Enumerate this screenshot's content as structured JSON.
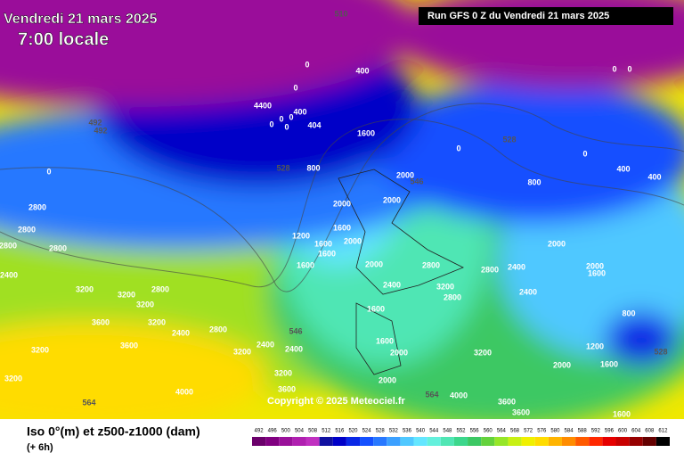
{
  "header": {
    "date": "Vendredi 21 mars 2025",
    "time": "7:00 locale",
    "run": "Run GFS 0 Z du Vendredi 21 mars 2025"
  },
  "copyright": "Copyright © 2025 Meteociel.fr",
  "legend": {
    "title": "Iso 0°(m) et z500-z1000 (dam)",
    "step": "(+ 6h)",
    "scale": [
      492,
      496,
      500,
      504,
      508,
      512,
      516,
      520,
      524,
      528,
      532,
      536,
      540,
      544,
      548,
      552,
      556,
      560,
      564,
      568,
      572,
      576,
      580,
      584,
      588,
      592,
      596,
      600,
      604,
      608,
      612
    ],
    "colors": [
      "#6b006b",
      "#800080",
      "#9a109a",
      "#b020b0",
      "#c030c0",
      "#1010a0",
      "#0000c8",
      "#0a28e6",
      "#1450ff",
      "#2878ff",
      "#3ca0ff",
      "#50c8ff",
      "#64e6ff",
      "#64f0dc",
      "#50e6b4",
      "#3cd78c",
      "#3cc864",
      "#64d23c",
      "#96e628",
      "#c8f014",
      "#f0f000",
      "#ffdc00",
      "#ffb400",
      "#ff8c00",
      "#ff5a00",
      "#ff2800",
      "#e60000",
      "#c80000",
      "#960000",
      "#640000",
      "#000000"
    ]
  },
  "iso0_labels": [
    0,
    400,
    0,
    4400,
    400,
    0,
    0,
    0,
    0,
    404,
    1600,
    800,
    2000,
    2000,
    2000,
    1600,
    1200,
    1600,
    2000,
    1600,
    1600,
    2000,
    2800,
    2400,
    3200,
    2800,
    2800,
    2400,
    2400,
    1600,
    1600,
    2000,
    2000,
    3200,
    4000,
    3600,
    3600,
    2000,
    2000,
    1600,
    800,
    1200,
    1600,
    2000,
    1600,
    400,
    400,
    800,
    0,
    0,
    0,
    0,
    0,
    2800,
    2800,
    2800,
    2800,
    2400,
    3200,
    3200,
    2800,
    3200,
    3600,
    3200,
    2400,
    2800,
    3600,
    3200,
    3200,
    2400,
    2400,
    3200,
    3600,
    4000,
    3200
  ],
  "thickness_labels": [
    510,
    492,
    492,
    528,
    528,
    546,
    564,
    564,
    546,
    528
  ]
}
